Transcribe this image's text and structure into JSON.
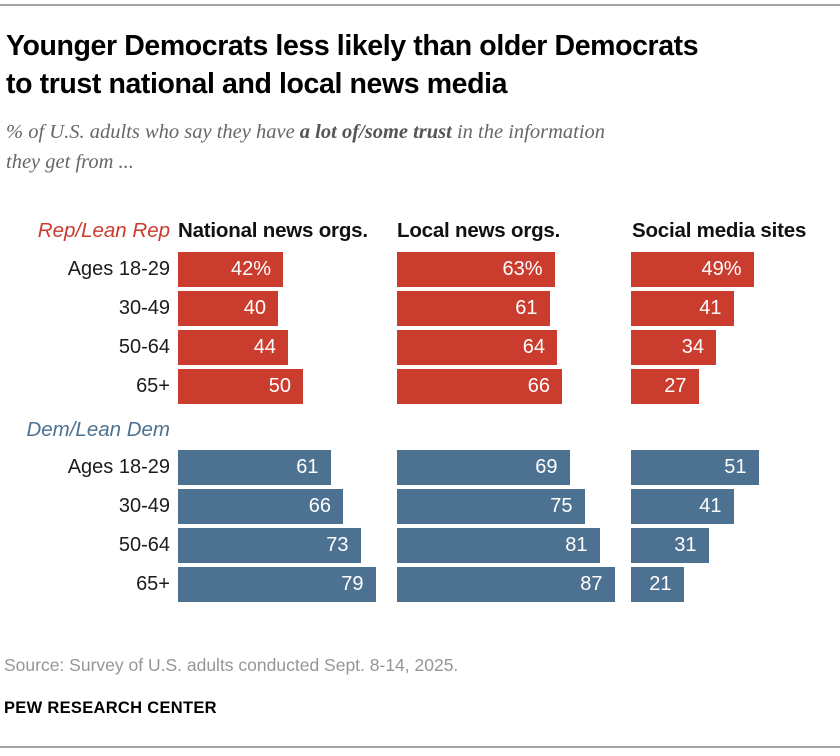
{
  "header": {
    "title_line1": "Younger Democrats less likely than older Democrats",
    "title_line2": "to trust national and local news media",
    "subtitle_prefix": "% of U.S. adults who say they have ",
    "subtitle_bold": "a lot of/some trust",
    "subtitle_line1_end": " in the information",
    "subtitle_line2": "they get from ..."
  },
  "colors": {
    "rep_red": "#c93c2e",
    "dem_blue": "#4d7190",
    "rule_gray": "#a3a3a3",
    "subtitle_gray": "#666666",
    "source_gray": "#969696"
  },
  "chart_data": {
    "type": "bar",
    "orientation": "horizontal",
    "value_unit": "percent",
    "columns": [
      "National news orgs.",
      "Local news orgs.",
      "Social media sites"
    ],
    "age_categories": [
      "Ages 18-29",
      "30-49",
      "50-64",
      "65+"
    ],
    "groups": [
      {
        "party": "Rep/Lean Rep",
        "color": "#c93c2e",
        "series": [
          {
            "name": "National news orgs.",
            "values": [
              42,
              40,
              44,
              50
            ],
            "display": [
              "42%",
              "40",
              "44",
              "50"
            ]
          },
          {
            "name": "Local news orgs.",
            "values": [
              63,
              61,
              64,
              66
            ],
            "display": [
              "63%",
              "61",
              "64",
              "66"
            ]
          },
          {
            "name": "Social media sites",
            "values": [
              49,
              41,
              34,
              27
            ],
            "display": [
              "49%",
              "41",
              "34",
              "27"
            ]
          }
        ]
      },
      {
        "party": "Dem/Lean Dem",
        "color": "#4d7190",
        "series": [
          {
            "name": "National news orgs.",
            "values": [
              61,
              66,
              73,
              79
            ],
            "display": [
              "61",
              "66",
              "73",
              "79"
            ]
          },
          {
            "name": "Local news orgs.",
            "values": [
              69,
              75,
              81,
              87
            ],
            "display": [
              "69",
              "75",
              "81",
              "87"
            ]
          },
          {
            "name": "Social media sites",
            "values": [
              51,
              41,
              31,
              21
            ],
            "display": [
              "51",
              "41",
              "31",
              "21"
            ]
          }
        ]
      }
    ]
  },
  "footer": {
    "source": "Source: Survey of U.S. adults conducted Sept. 8-14, 2025.",
    "wordmark": "PEW RESEARCH CENTER"
  }
}
